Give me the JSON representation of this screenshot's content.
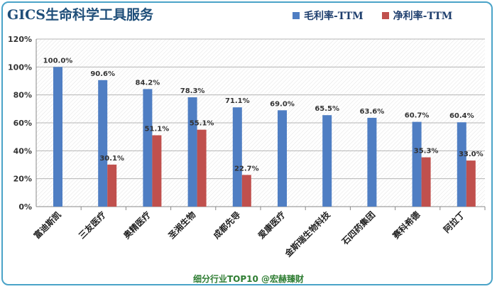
{
  "title": "GICS生命科学工具服务",
  "footer": "细分行业TOP10 @宏赫臻财",
  "chart_data": {
    "type": "bar",
    "categories": [
      "富迪斯凯",
      "三友医疗",
      "奥精医疗",
      "圣湘生物",
      "成都先导",
      "爱康医疗",
      "金斯瑞生物科技",
      "石四药集团",
      "赛科希德",
      "阿拉丁"
    ],
    "series": [
      {
        "name": "毛利率-TTM",
        "color": "#4f7ec3",
        "values": [
          100.0,
          90.6,
          84.2,
          78.3,
          71.1,
          69.0,
          65.5,
          63.6,
          60.7,
          60.4
        ]
      },
      {
        "name": "净利率-TTM",
        "color": "#c0504d",
        "values": [
          null,
          30.1,
          51.1,
          55.1,
          22.7,
          null,
          null,
          null,
          35.3,
          33.0
        ]
      }
    ],
    "y_ticks": [
      "0%",
      "20%",
      "40%",
      "60%",
      "80%",
      "100%",
      "120%"
    ],
    "ylim": [
      0,
      120
    ],
    "y_unit": "%",
    "grid": true,
    "legend_position": "top-right"
  }
}
